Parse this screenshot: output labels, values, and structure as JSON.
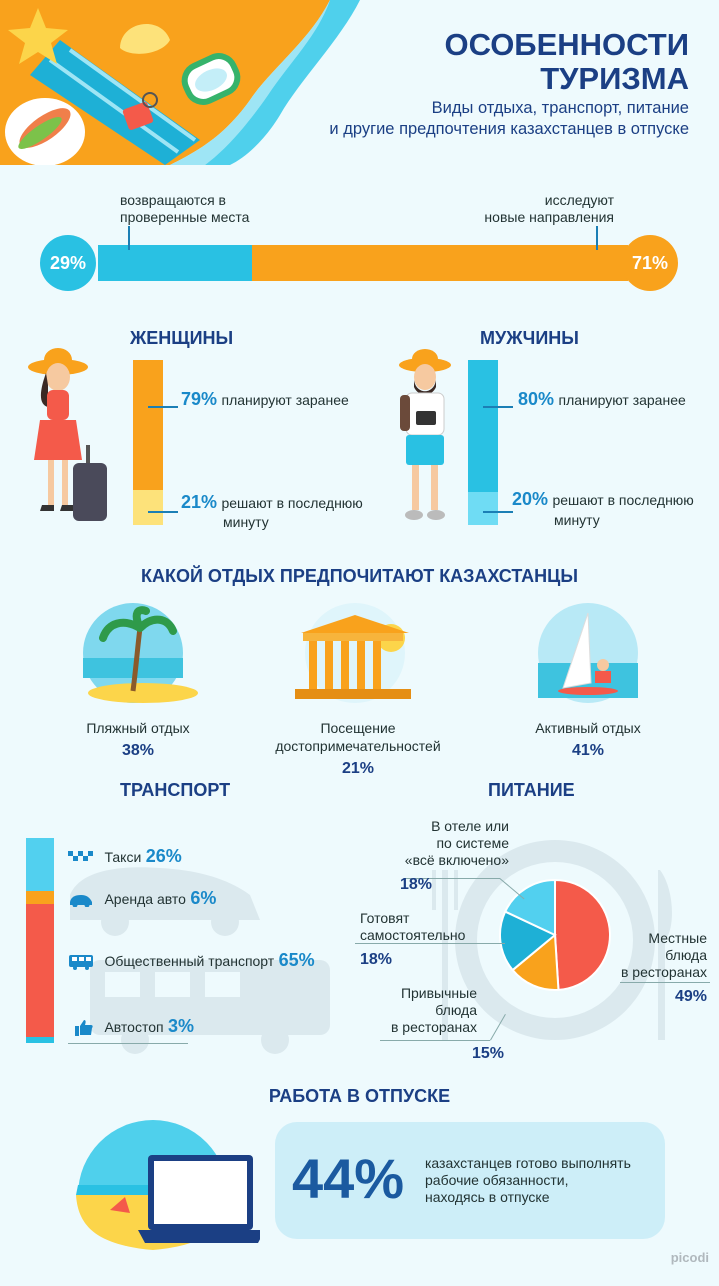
{
  "header": {
    "title_line1": "ОСОБЕННОСТИ",
    "title_line2": "ТУРИЗМА",
    "subtitle_line1": "Виды отдыха, транспорт, питание",
    "subtitle_line2": "и другие предпочтения казахстанцев в отпуске"
  },
  "destinations": {
    "left_label_line1": "возвращаются в",
    "left_label_line2": "проверенные места",
    "right_label_line1": "исследуют",
    "right_label_line2": "новые направления",
    "left_pct": "29%",
    "right_pct": "71%",
    "left_value": 29,
    "right_value": 71,
    "colors": {
      "left": "#29c1e3",
      "right": "#f9a21c"
    }
  },
  "women": {
    "title": "ЖЕНЩИНЫ",
    "plan_pct": "79%",
    "plan_label": "планируют заранее",
    "plan_value": 79,
    "last_pct": "21%",
    "last_label_line1": "решают в последнюю",
    "last_label_line2": "минуту",
    "last_value": 21,
    "colors": {
      "plan": "#f9a21c",
      "last": "#fde27a"
    }
  },
  "men": {
    "title": "МУЖЧИНЫ",
    "plan_pct": "80%",
    "plan_label": "планируют заранее",
    "plan_value": 80,
    "last_pct": "20%",
    "last_label_line1": "решают в последнюю",
    "last_label_line2": "минуту",
    "last_value": 20,
    "colors": {
      "plan": "#29c1e3",
      "last": "#6fdcf4"
    }
  },
  "leisure": {
    "title": "КАКОЙ ОТДЫХ ПРЕДПОЧИТАЮТ КАЗАХСТАНЦЫ",
    "items": [
      {
        "label_line1": "Пляжный отдых",
        "label_line2": "",
        "pct": "38%"
      },
      {
        "label_line1": "Посещение",
        "label_line2": "достопримечательностей",
        "pct": "21%"
      },
      {
        "label_line1": "Активный отдых",
        "label_line2": "",
        "pct": "41%"
      }
    ]
  },
  "transport": {
    "title": "ТРАНСПОРТ",
    "items": [
      {
        "icon": "taxi-icon",
        "label": "Такси",
        "pct": "26%",
        "value": 26,
        "color": "#52d0ef"
      },
      {
        "icon": "car-icon",
        "label": "Аренда авто",
        "pct": "6%",
        "value": 6,
        "color": "#f9a21c"
      },
      {
        "icon": "bus-icon",
        "label": "Общественный транспорт",
        "pct": "65%",
        "value": 65,
        "color": "#f45a4a"
      },
      {
        "icon": "thumb-up-icon",
        "label": "Автостоп",
        "pct": "3%",
        "value": 3,
        "color": "#29c1e3"
      }
    ]
  },
  "food": {
    "title": "ПИТАНИЕ",
    "hotel_label_line1": "В отеле или",
    "hotel_label_line2": "по системе",
    "hotel_label_line3": "«всё включено»",
    "hotel_pct": "18%",
    "self_label_line1": "Готовят",
    "self_label_line2": "самостоятельно",
    "self_pct": "18%",
    "usual_label_line1": "Привычные",
    "usual_label_line2": "блюда",
    "usual_label_line3": "в ресторанах",
    "usual_pct": "15%",
    "local_label_line1": "Местные",
    "local_label_line2": "блюда",
    "local_label_line3": "в ресторанах",
    "local_pct": "49%"
  },
  "chart_data": [
    {
      "type": "bar",
      "title": "",
      "categories": [
        "возвращаются в проверенные места",
        "исследуют новые направления"
      ],
      "values": [
        29,
        71
      ]
    },
    {
      "type": "bar",
      "title": "ЖЕНЩИНЫ",
      "categories": [
        "планируют заранее",
        "решают в последнюю минуту"
      ],
      "values": [
        79,
        21
      ]
    },
    {
      "type": "bar",
      "title": "МУЖЧИНЫ",
      "categories": [
        "планируют заранее",
        "решают в последнюю минуту"
      ],
      "values": [
        80,
        20
      ]
    },
    {
      "type": "bar",
      "title": "КАКОЙ ОТДЫХ ПРЕДПОЧИТАЮТ КАЗАХСТАНЦЫ",
      "categories": [
        "Пляжный отдых",
        "Посещение достопримечательностей",
        "Активный отдых"
      ],
      "values": [
        38,
        21,
        41
      ]
    },
    {
      "type": "bar",
      "title": "ТРАНСПОРТ",
      "categories": [
        "Такси",
        "Аренда авто",
        "Общественный транспорт",
        "Автостоп"
      ],
      "values": [
        26,
        6,
        65,
        3
      ]
    },
    {
      "type": "pie",
      "title": "ПИТАНИЕ",
      "categories": [
        "Местные блюда в ресторанах",
        "Привычные блюда в ресторанах",
        "Готовят самостоятельно",
        "В отеле или по системе «всё включено»"
      ],
      "values": [
        49,
        15,
        18,
        18
      ],
      "colors": [
        "#f45a4a",
        "#f9a21c",
        "#1eb0d6",
        "#52d0ef"
      ]
    }
  ],
  "work": {
    "title": "РАБОТА В ОТПУСКЕ",
    "pct": "44%",
    "text_line1": "казахстанцев готово выполнять",
    "text_line2": "рабочие обязанности,",
    "text_line3": "находясь в отпуске"
  },
  "brand": {
    "name": "picodi"
  }
}
